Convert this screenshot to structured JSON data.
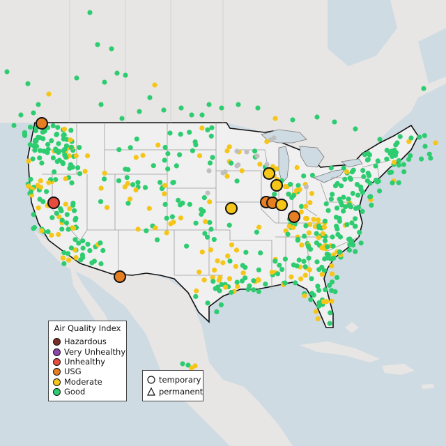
{
  "colors": {
    "ocean": "#cfdbe3",
    "land_us": "#f0f0f0",
    "land_other": "#e8e6e4",
    "great_lakes": "#cfdbe3",
    "state_border": "#9a9a9a",
    "country_border": "#111111",
    "good": "#2ecc71",
    "moderate": "#f5c518",
    "usg": "#e67e22",
    "unhealthy": "#e74c3c",
    "very_unhealthy": "#8e44ad",
    "hazardous": "#7b2d26",
    "no_data": "#bfbfbf"
  },
  "legend_aqi": {
    "title": "Air Quality Index",
    "items": [
      {
        "label": "Hazardous",
        "color": "#7b2d26"
      },
      {
        "label": "Very Unhealthy",
        "color": "#8e44ad"
      },
      {
        "label": "Unhealthy",
        "color": "#e74c3c"
      },
      {
        "label": "USG",
        "color": "#e67e22"
      },
      {
        "label": "Moderate",
        "color": "#f5c518"
      },
      {
        "label": "Good",
        "color": "#2ecc71"
      }
    ]
  },
  "legend_type": {
    "items": [
      {
        "label": "temporary",
        "shape": "circle-icon"
      },
      {
        "label": "permanent",
        "shape": "triangle-icon"
      }
    ]
  },
  "large_markers": [
    {
      "id": "wa-border",
      "category": "USG"
    },
    {
      "id": "nevada",
      "category": "Unhealthy"
    },
    {
      "id": "arizona-mexico",
      "category": "USG"
    },
    {
      "id": "iowa-missouri",
      "category": "Moderate"
    },
    {
      "id": "illinois-north-1",
      "category": "Moderate"
    },
    {
      "id": "illinois-north-2",
      "category": "Moderate"
    },
    {
      "id": "illinois-central-1",
      "category": "USG"
    },
    {
      "id": "illinois-central-2",
      "category": "USG"
    },
    {
      "id": "indiana",
      "category": "Moderate"
    },
    {
      "id": "kentucky",
      "category": "USG"
    }
  ]
}
